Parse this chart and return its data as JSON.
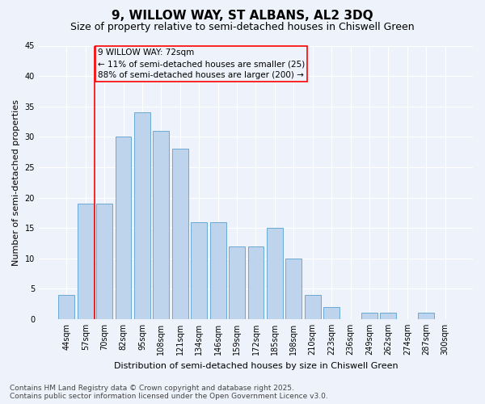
{
  "title": "9, WILLOW WAY, ST ALBANS, AL2 3DQ",
  "subtitle": "Size of property relative to semi-detached houses in Chiswell Green",
  "xlabel": "Distribution of semi-detached houses by size in Chiswell Green",
  "ylabel": "Number of semi-detached properties",
  "categories": [
    "44sqm",
    "57sqm",
    "70sqm",
    "82sqm",
    "95sqm",
    "108sqm",
    "121sqm",
    "134sqm",
    "146sqm",
    "159sqm",
    "172sqm",
    "185sqm",
    "198sqm",
    "210sqm",
    "223sqm",
    "236sqm",
    "249sqm",
    "262sqm",
    "274sqm",
    "287sqm",
    "300sqm"
  ],
  "values": [
    4,
    19,
    19,
    30,
    34,
    31,
    28,
    16,
    16,
    12,
    12,
    15,
    10,
    4,
    2,
    0,
    1,
    1,
    0,
    1,
    0
  ],
  "bar_color": "#bed3ec",
  "bar_edge_color": "#6aaad4",
  "bar_width": 0.85,
  "vline_x": 1.5,
  "vline_color": "red",
  "annotation_title": "9 WILLOW WAY: 72sqm",
  "annotation_line1": "← 11% of semi-detached houses are smaller (25)",
  "annotation_line2": "88% of semi-detached houses are larger (200) →",
  "annotation_box_color": "red",
  "ylim": [
    0,
    45
  ],
  "yticks": [
    0,
    5,
    10,
    15,
    20,
    25,
    30,
    35,
    40,
    45
  ],
  "background_color": "#eef2fa",
  "grid_color": "#ffffff",
  "footer_line1": "Contains HM Land Registry data © Crown copyright and database right 2025.",
  "footer_line2": "Contains public sector information licensed under the Open Government Licence v3.0.",
  "title_fontsize": 11,
  "subtitle_fontsize": 9,
  "axis_label_fontsize": 8,
  "tick_fontsize": 7,
  "annotation_fontsize": 7.5,
  "footer_fontsize": 6.5
}
